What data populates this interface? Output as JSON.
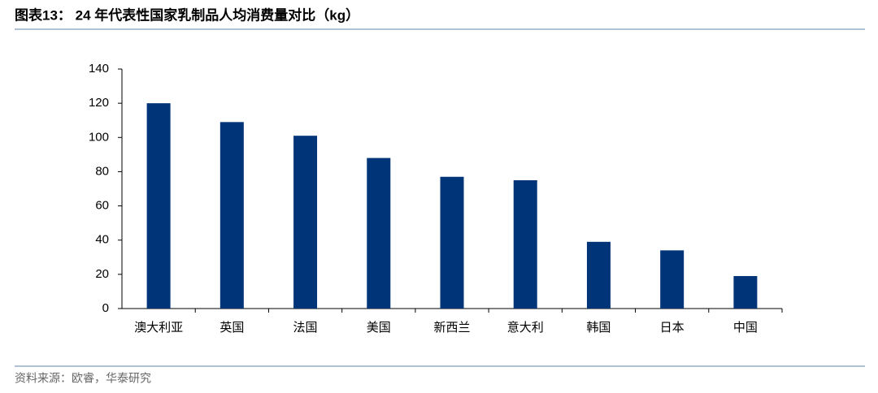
{
  "chart_data": {
    "type": "bar",
    "title": "图表13： 24 年代表性国家乳制品人均消费量对比（kg）",
    "source": "资料来源：欧睿，华泰研究",
    "categories": [
      "澳大利亚",
      "英国",
      "法国",
      "美国",
      "新西兰",
      "意大利",
      "韩国",
      "日本",
      "中国"
    ],
    "values": [
      120,
      109,
      101,
      88,
      77,
      75,
      39,
      34,
      19
    ],
    "color": "#003478",
    "ylim": [
      0,
      140
    ],
    "yticks": [
      0,
      20,
      40,
      60,
      80,
      100,
      120,
      140
    ],
    "grid": false
  }
}
